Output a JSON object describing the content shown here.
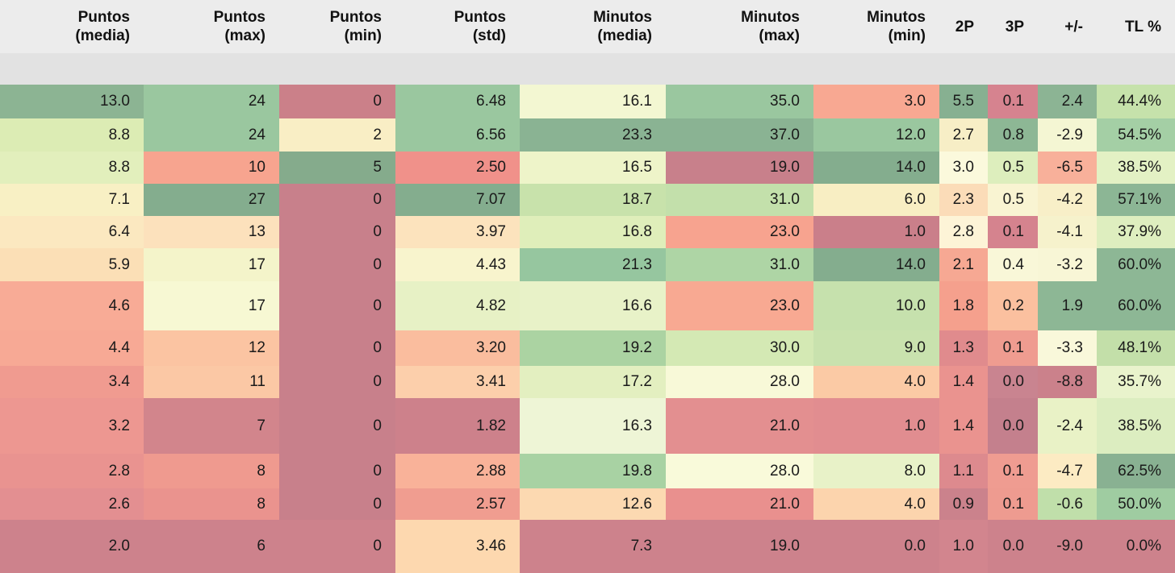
{
  "meta": {
    "background": "#ffffff",
    "header_bg": "#ececec",
    "subheader_bg": "#e2e2e2",
    "text_color": "#141414",
    "palette_low": "#cd828c",
    "palette_mid": "#f9f8da",
    "palette_high": "#84ad8e"
  },
  "table": {
    "columns": [
      {
        "id": "puntos-media",
        "line1": "Puntos",
        "line2": "(media)",
        "label": "Puntos (media)"
      },
      {
        "id": "puntos-max",
        "line1": "Puntos",
        "line2": "(max)",
        "label": "Puntos (max)"
      },
      {
        "id": "puntos-min",
        "line1": "Puntos",
        "line2": "(min)",
        "label": "Puntos (min)"
      },
      {
        "id": "puntos-std",
        "line1": "Puntos",
        "line2": "(std)",
        "label": "Puntos (std)"
      },
      {
        "id": "minutos-media",
        "line1": "Minutos",
        "line2": "(media)",
        "label": "Minutos (media)"
      },
      {
        "id": "minutos-max",
        "line1": "Minutos",
        "line2": "(max)",
        "label": "Minutos (max)"
      },
      {
        "id": "minutos-min",
        "line1": "Minutos",
        "line2": "(min)",
        "label": "Minutos (min)"
      },
      {
        "id": "2p",
        "line1": "2P",
        "line2": "",
        "label": "2P"
      },
      {
        "id": "3p",
        "line1": "3P",
        "line2": "",
        "label": "3P"
      },
      {
        "id": "plusminus",
        "line1": "+/-",
        "line2": "",
        "label": "+/-"
      },
      {
        "id": "tl-pct",
        "line1": "TL %",
        "line2": "",
        "label": "TL %"
      }
    ],
    "rows": [
      {
        "cells": [
          {
            "v": "13.0",
            "bg": "#8cb493"
          },
          {
            "v": "24",
            "bg": "#9ac79f"
          },
          {
            "v": "0",
            "bg": "#cb8089"
          },
          {
            "v": "6.48",
            "bg": "#9ac79f"
          },
          {
            "v": "16.1",
            "bg": "#f3f7d2"
          },
          {
            "v": "35.0",
            "bg": "#9ac79f"
          },
          {
            "v": "3.0",
            "bg": "#f8a892"
          },
          {
            "v": "5.5",
            "bg": "#87b091"
          },
          {
            "v": "0.1",
            "bg": "#d6838f"
          },
          {
            "v": "2.4",
            "bg": "#8cb494"
          },
          {
            "v": "44.4%",
            "bg": "#c6e2ab"
          }
        ]
      },
      {
        "cells": [
          {
            "v": "8.8",
            "bg": "#dcecb4"
          },
          {
            "v": "24",
            "bg": "#9ac79f"
          },
          {
            "v": "2",
            "bg": "#f9eec5"
          },
          {
            "v": "6.56",
            "bg": "#9ac79f"
          },
          {
            "v": "23.3",
            "bg": "#8ab393"
          },
          {
            "v": "37.0",
            "bg": "#8ab393"
          },
          {
            "v": "12.0",
            "bg": "#9ac79f"
          },
          {
            "v": "2.7",
            "bg": "#f7eec6"
          },
          {
            "v": "0.8",
            "bg": "#8db795"
          },
          {
            "v": "-2.9",
            "bg": "#f4f6d3"
          },
          {
            "v": "54.5%",
            "bg": "#a4cfa5"
          }
        ]
      },
      {
        "cells": [
          {
            "v": "8.8",
            "bg": "#e2efbc"
          },
          {
            "v": "10",
            "bg": "#f7a48f"
          },
          {
            "v": "5",
            "bg": "#85ab8c"
          },
          {
            "v": "2.50",
            "bg": "#f0918a"
          },
          {
            "v": "16.5",
            "bg": "#eef4c9"
          },
          {
            "v": "19.0",
            "bg": "#c8808b"
          },
          {
            "v": "14.0",
            "bg": "#84ad8e"
          },
          {
            "v": "3.0",
            "bg": "#fbf9dc"
          },
          {
            "v": "0.5",
            "bg": "#ddeebd"
          },
          {
            "v": "-6.5",
            "bg": "#f8b09a"
          },
          {
            "v": "38.5%",
            "bg": "#e3f1c4"
          }
        ]
      },
      {
        "cells": [
          {
            "v": "7.1",
            "bg": "#f8f0c4"
          },
          {
            "v": "27",
            "bg": "#84ad8e"
          },
          {
            "v": "0",
            "bg": "#c8808b"
          },
          {
            "v": "7.07",
            "bg": "#84ad8e"
          },
          {
            "v": "18.7",
            "bg": "#c8e2ab"
          },
          {
            "v": "31.0",
            "bg": "#c3e0ab"
          },
          {
            "v": "6.0",
            "bg": "#f8eec3"
          },
          {
            "v": "2.3",
            "bg": "#fbdcb8"
          },
          {
            "v": "0.5",
            "bg": "#f9f4d2"
          },
          {
            "v": "-4.2",
            "bg": "#f8efc8"
          },
          {
            "v": "57.1%",
            "bg": "#8cb695"
          }
        ]
      },
      {
        "cells": [
          {
            "v": "6.4",
            "bg": "#fbe8c0"
          },
          {
            "v": "13",
            "bg": "#fce1bc"
          },
          {
            "v": "0",
            "bg": "#c8808b"
          },
          {
            "v": "3.97",
            "bg": "#fce3bd"
          },
          {
            "v": "16.8",
            "bg": "#dfeeba"
          },
          {
            "v": "23.0",
            "bg": "#f7a38f"
          },
          {
            "v": "1.0",
            "bg": "#ca7f8a"
          },
          {
            "v": "2.8",
            "bg": "#fdf4d7"
          },
          {
            "v": "0.1",
            "bg": "#d5838e"
          },
          {
            "v": "-4.1",
            "bg": "#f6f2cc"
          },
          {
            "v": "37.9%",
            "bg": "#deeebf"
          }
        ]
      },
      {
        "cells": [
          {
            "v": "5.9",
            "bg": "#fbdfb6"
          },
          {
            "v": "17",
            "bg": "#f4f4ca"
          },
          {
            "v": "0",
            "bg": "#c8808b"
          },
          {
            "v": "4.43",
            "bg": "#f8f4cd"
          },
          {
            "v": "21.3",
            "bg": "#96c69f"
          },
          {
            "v": "31.0",
            "bg": "#aed5a5"
          },
          {
            "v": "14.0",
            "bg": "#84ad8e"
          },
          {
            "v": "2.1",
            "bg": "#f6a893"
          },
          {
            "v": "0.4",
            "bg": "#f9f7d8"
          },
          {
            "v": "-3.2",
            "bg": "#f8f6d6"
          },
          {
            "v": "60.0%",
            "bg": "#8db795"
          }
        ]
      },
      {
        "cells": [
          {
            "v": "4.6",
            "bg": "#f8ab96"
          },
          {
            "v": "17",
            "bg": "#f7f8d3"
          },
          {
            "v": "0",
            "bg": "#c8808b"
          },
          {
            "v": "4.82",
            "bg": "#e7f1c5"
          },
          {
            "v": "16.6",
            "bg": "#e8f2c8"
          },
          {
            "v": "23.0",
            "bg": "#f8a992"
          },
          {
            "v": "10.0",
            "bg": "#c6e1ad"
          },
          {
            "v": "1.8",
            "bg": "#f5a08d"
          },
          {
            "v": "0.2",
            "bg": "#fbc09f"
          },
          {
            "v": "1.9",
            "bg": "#8db795"
          },
          {
            "v": "60.0%",
            "bg": "#8db795"
          }
        ]
      },
      {
        "cells": [
          {
            "v": "4.4",
            "bg": "#f7a995"
          },
          {
            "v": "12",
            "bg": "#fbc4a2"
          },
          {
            "v": "0",
            "bg": "#c8808b"
          },
          {
            "v": "3.20",
            "bg": "#fabd9e"
          },
          {
            "v": "19.2",
            "bg": "#abd3a2"
          },
          {
            "v": "30.0",
            "bg": "#d4e9b4"
          },
          {
            "v": "9.0",
            "bg": "#c9e2ae"
          },
          {
            "v": "1.3",
            "bg": "#e08b8d"
          },
          {
            "v": "0.1",
            "bg": "#ef9c90"
          },
          {
            "v": "-3.3",
            "bg": "#f9f8da"
          },
          {
            "v": "48.1%",
            "bg": "#c3dfa9"
          }
        ]
      },
      {
        "cells": [
          {
            "v": "3.4",
            "bg": "#f09b90"
          },
          {
            "v": "11",
            "bg": "#fbc8a5"
          },
          {
            "v": "0",
            "bg": "#c8808b"
          },
          {
            "v": "3.41",
            "bg": "#fccfab"
          },
          {
            "v": "17.2",
            "bg": "#e3efc0"
          },
          {
            "v": "28.0",
            "bg": "#f8f9d8"
          },
          {
            "v": "4.0",
            "bg": "#fbcaa5"
          },
          {
            "v": "1.4",
            "bg": "#ea938f"
          },
          {
            "v": "0.0",
            "bg": "#c98490"
          },
          {
            "v": "-8.8",
            "bg": "#cb818b"
          },
          {
            "v": "35.7%",
            "bg": "#e9f3cc"
          }
        ]
      },
      {
        "cells": [
          {
            "v": "3.2",
            "bg": "#ed9791"
          },
          {
            "v": "7",
            "bg": "#d2858c"
          },
          {
            "v": "0",
            "bg": "#c8808b"
          },
          {
            "v": "1.82",
            "bg": "#cd818b"
          },
          {
            "v": "16.3",
            "bg": "#eef5d6"
          },
          {
            "v": "21.0",
            "bg": "#e38f90"
          },
          {
            "v": "1.0",
            "bg": "#e18d90"
          },
          {
            "v": "1.4",
            "bg": "#ea938f"
          },
          {
            "v": "0.0",
            "bg": "#c4808d"
          },
          {
            "v": "-2.4",
            "bg": "#e9f2c6"
          },
          {
            "v": "38.5%",
            "bg": "#dcedc0"
          }
        ]
      },
      {
        "cells": [
          {
            "v": "2.8",
            "bg": "#e99390"
          },
          {
            "v": "8",
            "bg": "#ef9a8f"
          },
          {
            "v": "0",
            "bg": "#c8808b"
          },
          {
            "v": "2.88",
            "bg": "#f9b299"
          },
          {
            "v": "19.8",
            "bg": "#a8d2a3"
          },
          {
            "v": "28.0",
            "bg": "#f9fada"
          },
          {
            "v": "8.0",
            "bg": "#e8f2c8"
          },
          {
            "v": "1.1",
            "bg": "#dd8a8e"
          },
          {
            "v": "0.1",
            "bg": "#ef9c91"
          },
          {
            "v": "-4.7",
            "bg": "#fcebc3"
          },
          {
            "v": "62.5%",
            "bg": "#89b192"
          }
        ]
      },
      {
        "cells": [
          {
            "v": "2.6",
            "bg": "#e38f91"
          },
          {
            "v": "8",
            "bg": "#ea938e"
          },
          {
            "v": "0",
            "bg": "#c8808b"
          },
          {
            "v": "2.57",
            "bg": "#f09d90"
          },
          {
            "v": "12.6",
            "bg": "#fcd9b1"
          },
          {
            "v": "21.0",
            "bg": "#e9908e"
          },
          {
            "v": "4.0",
            "bg": "#fcd4ad"
          },
          {
            "v": "0.9",
            "bg": "#cb828c"
          },
          {
            "v": "0.1",
            "bg": "#ee9b90"
          },
          {
            "v": "-0.6",
            "bg": "#c0dfaa"
          },
          {
            "v": "50.0%",
            "bg": "#9fcca1"
          }
        ]
      },
      {
        "cells": [
          {
            "v": "2.0",
            "bg": "#cd828c"
          },
          {
            "v": "6",
            "bg": "#cd828c"
          },
          {
            "v": "0",
            "bg": "#cd828c"
          },
          {
            "v": "3.46",
            "bg": "#fdd8af"
          },
          {
            "v": "7.3",
            "bg": "#cd828c"
          },
          {
            "v": "19.0",
            "bg": "#cd828c"
          },
          {
            "v": "0.0",
            "bg": "#cd828c"
          },
          {
            "v": "1.0",
            "bg": "#d2858e"
          },
          {
            "v": "0.0",
            "bg": "#cd828c"
          },
          {
            "v": "-9.0",
            "bg": "#cd828c"
          },
          {
            "v": "0.0%",
            "bg": "#cd828c"
          }
        ]
      }
    ]
  },
  "chart_data": {
    "type": "table",
    "subtype": "heatmap-styled stats table, per-column red-yellow-green gradient",
    "title": "",
    "columns": [
      "Puntos (media)",
      "Puntos (max)",
      "Puntos (min)",
      "Puntos (std)",
      "Minutos (media)",
      "Minutos (max)",
      "Minutos (min)",
      "2P",
      "3P",
      "+/-",
      "TL %"
    ],
    "rows": [
      [
        13.0,
        24,
        0,
        6.48,
        16.1,
        35.0,
        3.0,
        5.5,
        0.1,
        2.4,
        44.4
      ],
      [
        8.8,
        24,
        2,
        6.56,
        23.3,
        37.0,
        12.0,
        2.7,
        0.8,
        -2.9,
        54.5
      ],
      [
        8.8,
        10,
        5,
        2.5,
        16.5,
        19.0,
        14.0,
        3.0,
        0.5,
        -6.5,
        38.5
      ],
      [
        7.1,
        27,
        0,
        7.07,
        18.7,
        31.0,
        6.0,
        2.3,
        0.5,
        -4.2,
        57.1
      ],
      [
        6.4,
        13,
        0,
        3.97,
        16.8,
        23.0,
        1.0,
        2.8,
        0.1,
        -4.1,
        37.9
      ],
      [
        5.9,
        17,
        0,
        4.43,
        21.3,
        31.0,
        14.0,
        2.1,
        0.4,
        -3.2,
        60.0
      ],
      [
        4.6,
        17,
        0,
        4.82,
        16.6,
        23.0,
        10.0,
        1.8,
        0.2,
        1.9,
        60.0
      ],
      [
        4.4,
        12,
        0,
        3.2,
        19.2,
        30.0,
        9.0,
        1.3,
        0.1,
        -3.3,
        48.1
      ],
      [
        3.4,
        11,
        0,
        3.41,
        17.2,
        28.0,
        4.0,
        1.4,
        0.0,
        -8.8,
        35.7
      ],
      [
        3.2,
        7,
        0,
        1.82,
        16.3,
        21.0,
        1.0,
        1.4,
        0.0,
        -2.4,
        38.5
      ],
      [
        2.8,
        8,
        0,
        2.88,
        19.8,
        28.0,
        8.0,
        1.1,
        0.1,
        -4.7,
        62.5
      ],
      [
        2.6,
        8,
        0,
        2.57,
        12.6,
        21.0,
        4.0,
        0.9,
        0.1,
        -0.6,
        50.0
      ],
      [
        2.0,
        6,
        0,
        3.46,
        7.3,
        19.0,
        0.0,
        1.0,
        0.0,
        -9.0,
        0.0
      ]
    ],
    "tl_pct_unit": "%",
    "legend_position": "none",
    "grid": false
  }
}
